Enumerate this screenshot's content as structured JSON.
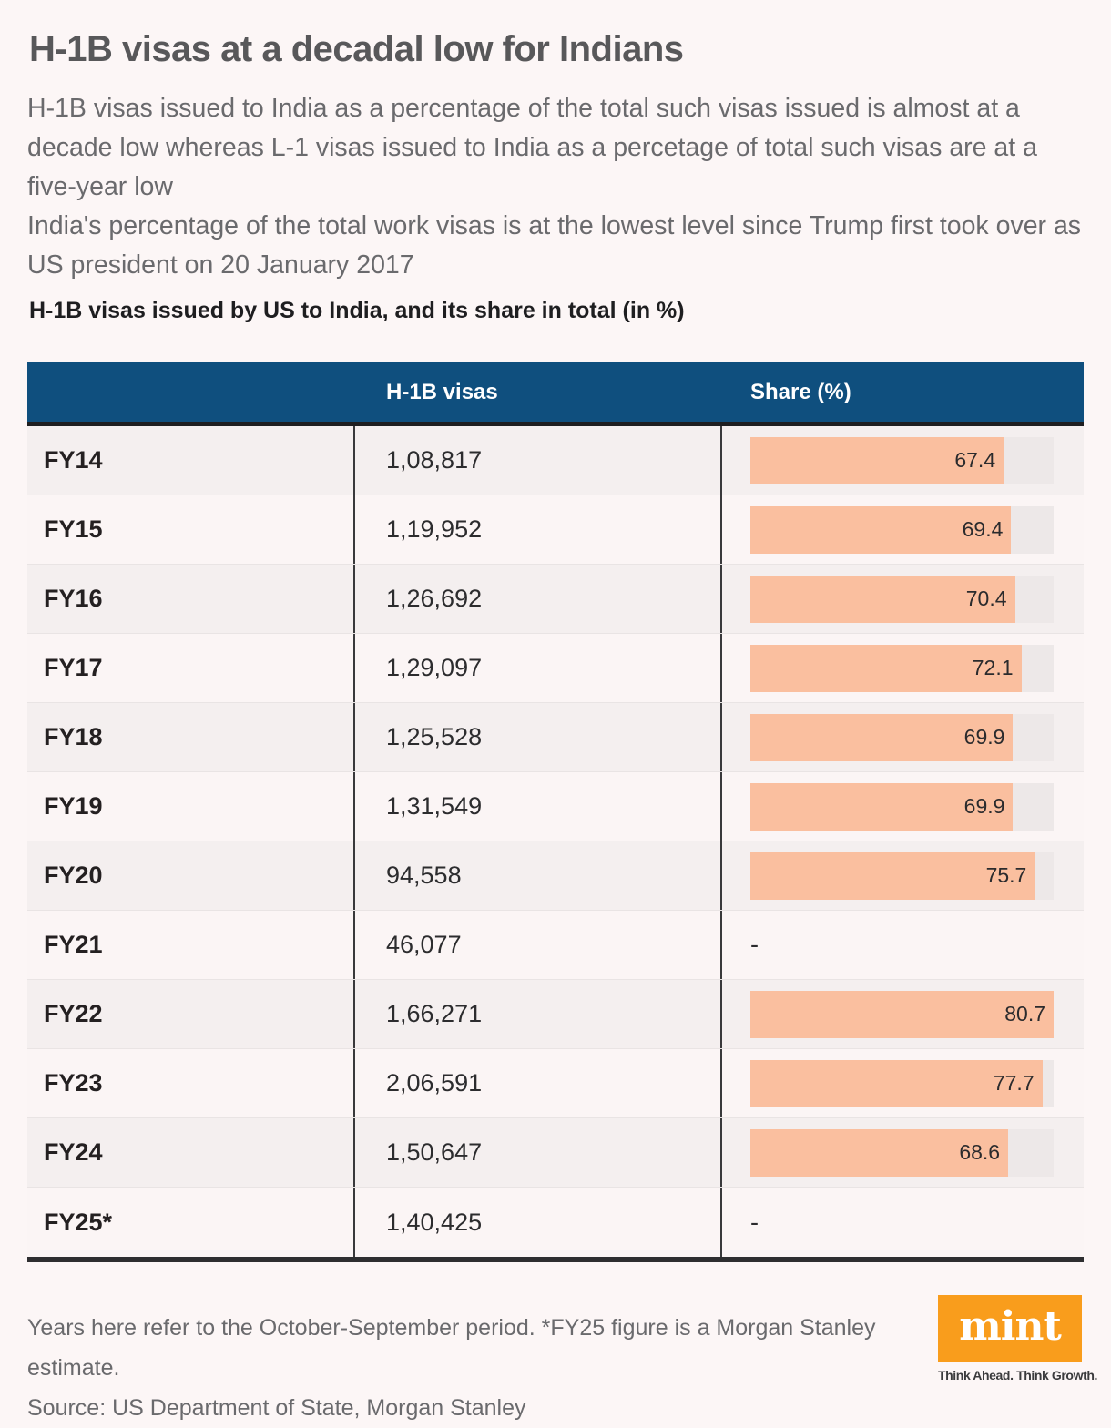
{
  "page": {
    "title": "H-1B visas at a decadal low for Indians",
    "subtitle_1": "H-1B visas issued to India as a percentage of the total such visas issued is almost at a decade low whereas L-1 visas issued to India as a percetage of total such visas are at a five-year low",
    "subtitle_2": "India's percentage of the total work visas is at the lowest level since Trump first took over as US president on 20 January 2017",
    "chart_title": "H-1B visas issued by US to India, and its share in total (in %)"
  },
  "table": {
    "columns": [
      "",
      "H-1B visas",
      "Share (%)"
    ],
    "rows": [
      {
        "year": "FY14",
        "visas": "1,08,817",
        "share": 67.4,
        "share_label": "67.4"
      },
      {
        "year": "FY15",
        "visas": "1,19,952",
        "share": 69.4,
        "share_label": "69.4"
      },
      {
        "year": "FY16",
        "visas": "1,26,692",
        "share": 70.4,
        "share_label": "70.4"
      },
      {
        "year": "FY17",
        "visas": "1,29,097",
        "share": 72.1,
        "share_label": "72.1"
      },
      {
        "year": "FY18",
        "visas": "1,25,528",
        "share": 69.9,
        "share_label": "69.9"
      },
      {
        "year": "FY19",
        "visas": "1,31,549",
        "share": 69.9,
        "share_label": "69.9"
      },
      {
        "year": "FY20",
        "visas": "94,558",
        "share": 75.7,
        "share_label": "75.7"
      },
      {
        "year": "FY21",
        "visas": "46,077",
        "share": null,
        "share_label": "-"
      },
      {
        "year": "FY22",
        "visas": "1,66,271",
        "share": 80.7,
        "share_label": "80.7"
      },
      {
        "year": "FY23",
        "visas": "2,06,591",
        "share": 77.7,
        "share_label": "77.7"
      },
      {
        "year": "FY24",
        "visas": "1,50,647",
        "share": 68.6,
        "share_label": "68.6"
      },
      {
        "year": "FY25*",
        "visas": "1,40,425",
        "share": null,
        "share_label": "-"
      }
    ]
  },
  "footer": {
    "note": "Years here refer to the October-September period. *FY25 figure is a Morgan Stanley estimate.",
    "source": "Source: US Department of State, Morgan Stanley",
    "logo_text": "mint",
    "logo_tagline": "Think Ahead. Think Growth."
  },
  "colors": {
    "page_background": "#FCF6F6",
    "header_blue": "#0F4F7E",
    "bar_peach": "#FABF9F",
    "bar_track_gray": "#EDE8E8",
    "row_light": "#FBF5F5",
    "row_dark": "#F4EFEF",
    "divider_dark": "#39393B",
    "logo_orange": "#F99D1C"
  },
  "chart_data": {
    "type": "bar",
    "orientation": "horizontal",
    "title": "H-1B visas issued by US to India, and its share in total (in %)",
    "categories": [
      "FY14",
      "FY15",
      "FY16",
      "FY17",
      "FY18",
      "FY19",
      "FY20",
      "FY21",
      "FY22",
      "FY23",
      "FY24",
      "FY25*"
    ],
    "series": [
      {
        "name": "H-1B visas",
        "values": [
          108817,
          119952,
          126692,
          129097,
          125528,
          131549,
          94558,
          46077,
          166271,
          206591,
          150647,
          140425
        ]
      },
      {
        "name": "Share (%)",
        "values": [
          67.4,
          69.4,
          70.4,
          72.1,
          69.9,
          69.9,
          75.7,
          null,
          80.7,
          77.7,
          68.6,
          null
        ]
      }
    ],
    "share_scale_max": 80.7,
    "grid": false,
    "legend": false,
    "notes": "Bars drawn relative to max share value 80.7 filling the full track; null share rendered as a dash."
  }
}
